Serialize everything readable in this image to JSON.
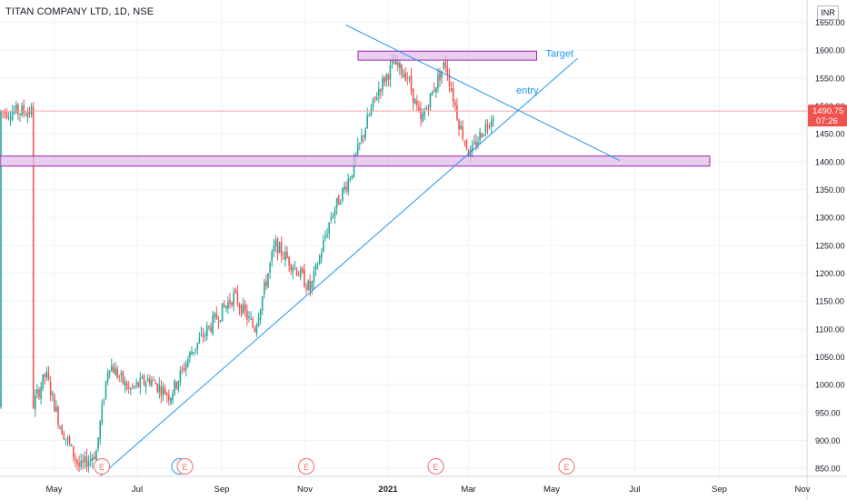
{
  "header": {
    "symbol_title": "TITAN COMPANY LTD, 1D, NSE",
    "currency": "INR"
  },
  "colors": {
    "up": "#26a69a",
    "down": "#ef5350",
    "trendline": "#2196f3",
    "zone_fill": "#e1bee7",
    "zone_stroke": "#9c27b0",
    "event_marker": "#f06d6d",
    "dividend_marker": "#2196f3"
  },
  "chart_data": {
    "type": "candlestick",
    "title": "TITAN COMPANY LTD, 1D, NSE",
    "y_axis": {
      "ticks": [
        "850.00",
        "900.00",
        "950.00",
        "1000.00",
        "1050.00",
        "1100.00",
        "1150.00",
        "1200.00",
        "1250.00",
        "1300.00",
        "1350.00",
        "1400.00",
        "1450.00",
        "1500.00",
        "1550.00",
        "1600.00",
        "1650.00"
      ],
      "range": [
        835,
        1665
      ],
      "position": "right"
    },
    "x_axis": {
      "ticks": [
        "May",
        "Jul",
        "Sep",
        "Nov",
        "2021",
        "Mar",
        "May",
        "Jul",
        "Sep",
        "Nov"
      ],
      "start_label": "May 2020"
    },
    "grid": true,
    "last_price": {
      "value": "1490.75",
      "countdown": "07:26"
    },
    "price_series_approx": [
      {
        "date": "2020-04-15",
        "price": 960
      },
      {
        "date": "2020-04-25",
        "price": 1020
      },
      {
        "date": "2020-05-05",
        "price": 930
      },
      {
        "date": "2020-05-20",
        "price": 850
      },
      {
        "date": "2020-06-01",
        "price": 880
      },
      {
        "date": "2020-06-10",
        "price": 1040
      },
      {
        "date": "2020-06-25",
        "price": 990
      },
      {
        "date": "2020-07-10",
        "price": 1010
      },
      {
        "date": "2020-07-25",
        "price": 980
      },
      {
        "date": "2020-08-10",
        "price": 1060
      },
      {
        "date": "2020-08-25",
        "price": 1110
      },
      {
        "date": "2020-09-10",
        "price": 1160
      },
      {
        "date": "2020-09-25",
        "price": 1100
      },
      {
        "date": "2020-10-10",
        "price": 1250
      },
      {
        "date": "2020-10-25",
        "price": 1210
      },
      {
        "date": "2020-11-05",
        "price": 1170
      },
      {
        "date": "2020-11-20",
        "price": 1300
      },
      {
        "date": "2020-12-05",
        "price": 1380
      },
      {
        "date": "2020-12-15",
        "price": 1460
      },
      {
        "date": "2020-12-25",
        "price": 1530
      },
      {
        "date": "2021-01-05",
        "price": 1575
      },
      {
        "date": "2021-01-15",
        "price": 1555
      },
      {
        "date": "2021-01-25",
        "price": 1470
      },
      {
        "date": "2021-02-05",
        "price": 1540
      },
      {
        "date": "2021-02-12",
        "price": 1578
      },
      {
        "date": "2021-02-22",
        "price": 1470
      },
      {
        "date": "2021-03-02",
        "price": 1410
      },
      {
        "date": "2021-03-10",
        "price": 1450
      },
      {
        "date": "2021-03-20",
        "price": 1490
      }
    ],
    "annotations": [
      {
        "label": "Target",
        "kind": "zone",
        "price_range": [
          1582,
          1598
        ],
        "date_range": [
          "2020-12-10",
          "2021-04-20"
        ]
      },
      {
        "label": "entry",
        "kind": "text",
        "price": 1522,
        "date": "2021-04-05"
      },
      {
        "label": "",
        "kind": "support-zone",
        "price_range": [
          1392,
          1410
        ],
        "date_range": [
          "2020-03-15",
          "2021-08-25"
        ]
      },
      {
        "label": "",
        "kind": "trendline",
        "points": [
          {
            "date": "2020-06-01",
            "price": 830
          },
          {
            "date": "2021-05-20",
            "price": 1585
          }
        ]
      },
      {
        "label": "",
        "kind": "trendline",
        "points": [
          {
            "date": "2020-12-01",
            "price": 1645
          },
          {
            "date": "2021-06-20",
            "price": 1402
          }
        ]
      },
      {
        "label": "",
        "kind": "horizontal-line",
        "price": 1490.75
      }
    ],
    "events": [
      {
        "label": "E",
        "date": "2020-06-05",
        "type": "earnings"
      },
      {
        "label": "D",
        "date": "2020-08-01",
        "type": "dividend"
      },
      {
        "label": "E",
        "date": "2020-08-05",
        "type": "earnings"
      },
      {
        "label": "E",
        "date": "2020-11-02",
        "type": "earnings"
      },
      {
        "label": "E",
        "date": "2021-02-05",
        "type": "earnings"
      },
      {
        "label": "E",
        "date": "2021-05-12",
        "type": "earnings"
      }
    ]
  }
}
